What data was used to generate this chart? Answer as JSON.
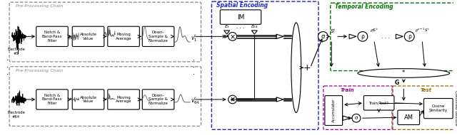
{
  "bg_color": "#ffffff",
  "pre_proc_label": "Pre-Processing Chain",
  "spatial_label": "Spatial Encoding",
  "temporal_label": "Temporal Encoding",
  "train_label": "Train",
  "test_label": "Test",
  "boxes": [
    "Notch &\nBand-Pass\nFilter",
    "Absolute\nValue",
    "Moving\nAverage",
    "Down-\nSample &\nNormalize"
  ],
  "electrode1": "Electrode\n#1",
  "electrode64": "Electrode\n#64",
  "im_label": "IM",
  "sigma_label": "σ",
  "rho_label": "ρ",
  "plus_label": "+",
  "g_label": "G",
  "star_label": "*",
  "am_label": "AM",
  "traintest_label": "Train/Test?",
  "accum_label": "Accumulator",
  "cosine_label": "Cosine\nSimilarity",
  "classified": "Classified Gesture",
  "pre_proc_color": "#888888",
  "spatial_color": "#2222cc",
  "temporal_color": "#007700",
  "train_color": "#990099",
  "test_color": "#996600",
  "fig_w": 6.4,
  "fig_h": 1.9,
  "dpi": 100
}
